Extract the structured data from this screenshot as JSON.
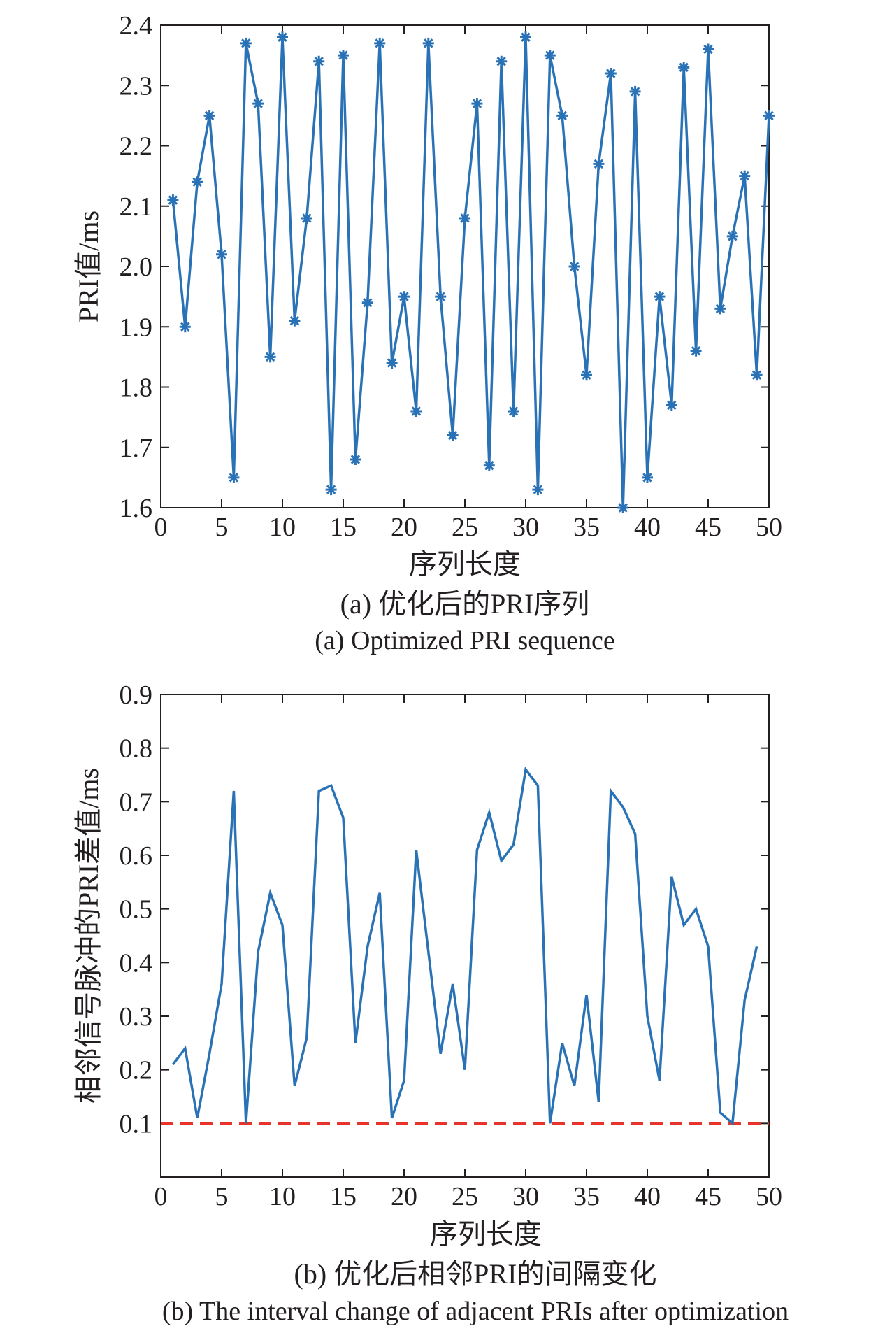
{
  "chart_data": [
    {
      "type": "line",
      "title": "",
      "xlabel": "序列长度",
      "ylabel": "PRI值/ms",
      "xlim": [
        0,
        50
      ],
      "ylim": [
        1.6,
        2.4
      ],
      "xticks": [
        "0",
        "5",
        "10",
        "15",
        "20",
        "25",
        "30",
        "35",
        "40",
        "45",
        "50"
      ],
      "yticks": [
        "1.6",
        "1.7",
        "1.8",
        "1.9",
        "2.0",
        "2.1",
        "2.2",
        "2.3",
        "2.4"
      ],
      "grid": false,
      "marker": "asterisk",
      "line_color": "#2a72b6",
      "caption_cn": "(a) 优化后的PRI序列",
      "caption_en": "(a) Optimized PRI sequence",
      "x": [
        1,
        2,
        3,
        4,
        5,
        6,
        7,
        8,
        9,
        10,
        11,
        12,
        13,
        14,
        15,
        16,
        17,
        18,
        19,
        20,
        21,
        22,
        23,
        24,
        25,
        26,
        27,
        28,
        29,
        30,
        31,
        32,
        33,
        34,
        35,
        36,
        37,
        38,
        39,
        40,
        41,
        42,
        43,
        44,
        45,
        46,
        47,
        48,
        49,
        50
      ],
      "series": [
        {
          "values": [
            2.11,
            1.9,
            2.14,
            2.25,
            2.02,
            1.65,
            2.37,
            2.27,
            1.85,
            2.38,
            1.91,
            2.08,
            2.34,
            1.63,
            2.35,
            1.68,
            1.94,
            2.37,
            1.84,
            1.95,
            1.76,
            2.37,
            1.95,
            1.72,
            2.08,
            2.27,
            1.67,
            2.34,
            1.76,
            2.38,
            1.63,
            2.35,
            2.25,
            2.0,
            1.82,
            2.17,
            2.32,
            1.6,
            2.29,
            1.65,
            1.95,
            1.77,
            2.33,
            1.86,
            2.36,
            1.93,
            2.05,
            2.15,
            1.82,
            2.25
          ]
        }
      ]
    },
    {
      "type": "line",
      "title": "",
      "xlabel": "序列长度",
      "ylabel": "相邻信号脉冲的PRI差值/ms",
      "xlim": [
        0,
        50
      ],
      "ylim": [
        0,
        0.9
      ],
      "xticks": [
        "0",
        "5",
        "10",
        "15",
        "20",
        "25",
        "30",
        "35",
        "40",
        "45",
        "50"
      ],
      "yticks": [
        "0.1",
        "0.2",
        "0.3",
        "0.4",
        "0.5",
        "0.6",
        "0.7",
        "0.8",
        "0.9"
      ],
      "grid": false,
      "line_color": "#2a72b6",
      "threshold": {
        "value": 0.1,
        "color": "#e8332a",
        "style": "dashed"
      },
      "caption_cn": "(b) 优化后相邻PRI的间隔变化",
      "caption_en": "(b) The interval change of adjacent PRIs after optimization",
      "x": [
        1,
        2,
        3,
        4,
        5,
        6,
        7,
        8,
        9,
        10,
        11,
        12,
        13,
        14,
        15,
        16,
        17,
        18,
        19,
        20,
        21,
        22,
        23,
        24,
        25,
        26,
        27,
        28,
        29,
        30,
        31,
        32,
        33,
        34,
        35,
        36,
        37,
        38,
        39,
        40,
        41,
        42,
        43,
        44,
        45,
        46,
        47,
        48,
        49
      ],
      "series": [
        {
          "values": [
            0.21,
            0.24,
            0.11,
            0.23,
            0.36,
            0.72,
            0.1,
            0.42,
            0.53,
            0.47,
            0.17,
            0.26,
            0.72,
            0.73,
            0.67,
            0.25,
            0.43,
            0.53,
            0.11,
            0.18,
            0.61,
            0.42,
            0.23,
            0.36,
            0.2,
            0.61,
            0.68,
            0.59,
            0.62,
            0.76,
            0.73,
            0.1,
            0.25,
            0.17,
            0.34,
            0.14,
            0.72,
            0.69,
            0.64,
            0.3,
            0.18,
            0.56,
            0.47,
            0.5,
            0.43,
            0.12,
            0.1,
            0.33,
            0.43
          ]
        }
      ]
    }
  ]
}
